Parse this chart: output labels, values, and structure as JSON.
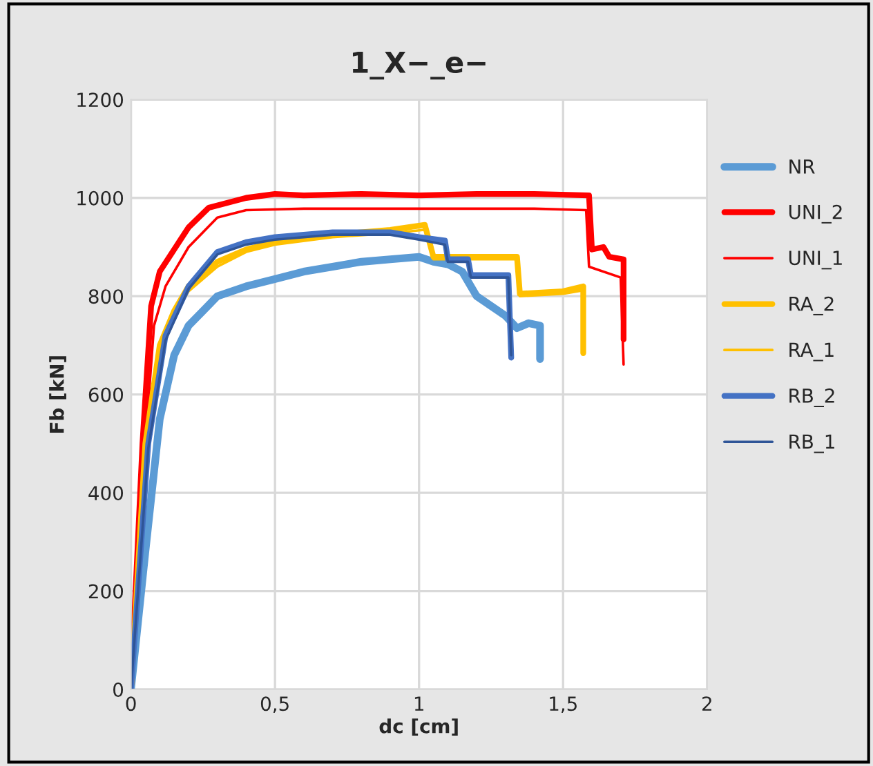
{
  "chart_data": {
    "type": "line",
    "title": "1_X−_e−",
    "xlabel": "dc [cm]",
    "ylabel": "Fb [kN]",
    "xlim": [
      0,
      2
    ],
    "ylim": [
      0,
      1200
    ],
    "xticks": [
      0,
      {
        "value": 0.5,
        "label": "0,5"
      },
      1,
      {
        "value": 1.5,
        "label": "1,5"
      },
      2
    ],
    "yticks": [
      0,
      200,
      400,
      600,
      800,
      1000,
      1200
    ],
    "grid": true,
    "legend": "right",
    "marker": "none",
    "line_style": "solid",
    "series": [
      {
        "name": "NR",
        "color": "#5b9bd5",
        "x": [
          0,
          0.05,
          0.1,
          0.15,
          0.2,
          0.25,
          0.3,
          0.4,
          0.5,
          0.6,
          0.7,
          0.8,
          0.9,
          1.0,
          1.05,
          1.1,
          1.15,
          1.2,
          1.25,
          1.3,
          1.34,
          1.38,
          1.42,
          1.42
        ],
        "values": [
          0,
          280,
          550,
          680,
          740,
          770,
          800,
          820,
          835,
          850,
          860,
          870,
          875,
          880,
          870,
          865,
          850,
          800,
          780,
          760,
          735,
          745,
          740,
          672
        ]
      },
      {
        "name": "UNI_2",
        "color": "#ff0000",
        "x": [
          0,
          0.04,
          0.07,
          0.1,
          0.2,
          0.27,
          0.4,
          0.5,
          0.6,
          0.8,
          1.0,
          1.2,
          1.4,
          1.59,
          1.6,
          1.64,
          1.66,
          1.71,
          1.71
        ],
        "values": [
          0,
          500,
          780,
          850,
          940,
          980,
          1000,
          1008,
          1005,
          1008,
          1005,
          1008,
          1008,
          1005,
          895,
          900,
          880,
          875,
          712
        ]
      },
      {
        "name": "UNI_1",
        "color": "#ff0000",
        "x": [
          0,
          0.05,
          0.08,
          0.12,
          0.2,
          0.3,
          0.4,
          0.6,
          0.8,
          1.0,
          1.2,
          1.4,
          1.58,
          1.59,
          1.7,
          1.71
        ],
        "values": [
          0,
          500,
          740,
          820,
          900,
          960,
          975,
          978,
          978,
          978,
          978,
          978,
          975,
          860,
          838,
          661
        ]
      },
      {
        "name": "RA_2",
        "color": "#ffc000",
        "x": [
          0,
          0.05,
          0.1,
          0.15,
          0.2,
          0.3,
          0.4,
          0.5,
          0.7,
          0.9,
          1.02,
          1.05,
          1.1,
          1.34,
          1.35,
          1.5,
          1.57,
          1.57
        ],
        "values": [
          0,
          500,
          700,
          770,
          820,
          870,
          895,
          910,
          925,
          935,
          945,
          880,
          880,
          880,
          805,
          810,
          820,
          684
        ]
      },
      {
        "name": "RA_1",
        "color": "#ffc000",
        "x": [
          0,
          0.05,
          0.1,
          0.15,
          0.2,
          0.3,
          0.4,
          0.5,
          0.7,
          0.9,
          1.02,
          1.05,
          1.1,
          1.34,
          1.35,
          1.5,
          1.57,
          1.57
        ],
        "values": [
          0,
          480,
          690,
          760,
          810,
          860,
          890,
          905,
          920,
          928,
          935,
          875,
          875,
          875,
          800,
          805,
          812,
          690
        ]
      },
      {
        "name": "RB_2",
        "color": "#4472c4",
        "x": [
          0,
          0.06,
          0.12,
          0.2,
          0.3,
          0.4,
          0.5,
          0.7,
          0.9,
          1.0,
          1.09,
          1.1,
          1.17,
          1.18,
          1.31,
          1.32
        ],
        "values": [
          0,
          500,
          720,
          820,
          890,
          910,
          920,
          930,
          930,
          920,
          913,
          875,
          875,
          843,
          843,
          675
        ]
      },
      {
        "name": "RB_1",
        "color": "#2f5597",
        "x": [
          0,
          0.06,
          0.12,
          0.2,
          0.3,
          0.4,
          0.5,
          0.7,
          0.9,
          1.0,
          1.09,
          1.1,
          1.17,
          1.18,
          1.31,
          1.32
        ],
        "values": [
          0,
          490,
          710,
          815,
          885,
          905,
          915,
          925,
          925,
          915,
          905,
          870,
          870,
          838,
          838,
          680
        ]
      }
    ]
  }
}
